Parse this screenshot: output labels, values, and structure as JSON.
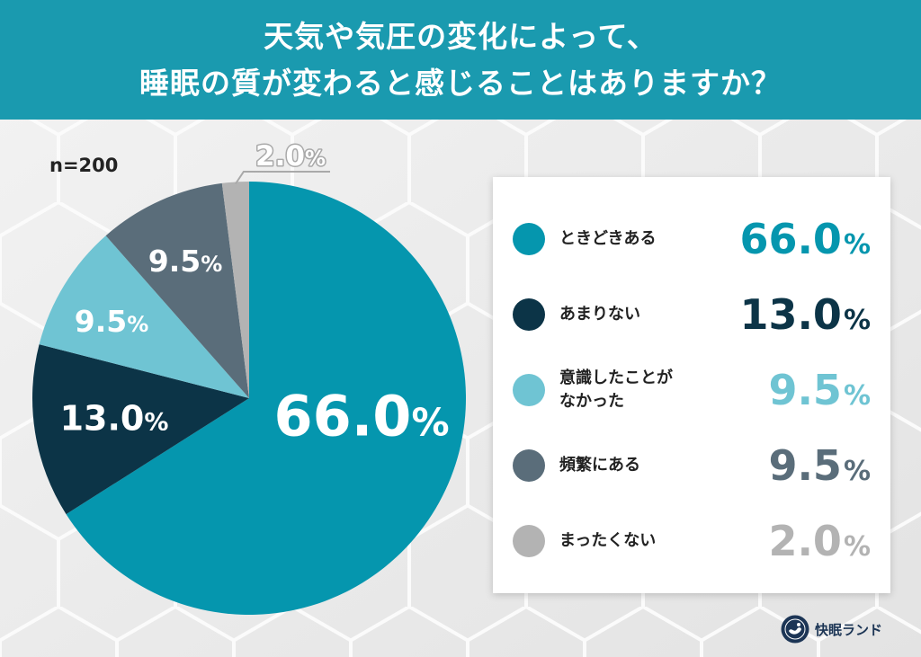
{
  "theme": {
    "header_bg": "#1a9aaf",
    "text": "#222222",
    "outside_label_stroke": "#a9a9a9"
  },
  "chart_data": {
    "type": "pie",
    "title_lines": [
      "天気や気圧の変化によって、",
      "睡眠の質が変わると感じることはありますか？"
    ],
    "sample_size": "n=200",
    "categories": [
      "ときどきある",
      "あまりない",
      "意識したことが\nなかった",
      "頻繁にある",
      "まったくない"
    ],
    "values": [
      66.0,
      13.0,
      9.5,
      9.5,
      2.0
    ],
    "value_labels": [
      "66.0",
      "13.0",
      "9.5",
      "9.5",
      "2.0"
    ],
    "unit": "%",
    "colors": [
      "#0596ae",
      "#0c3447",
      "#6fc4d3",
      "#5a6d7a",
      "#b3b3b3"
    ],
    "legend_position": "right"
  },
  "brand": {
    "name": "快眠ランド",
    "logo_icon": "kaimin-land-logo-icon"
  }
}
